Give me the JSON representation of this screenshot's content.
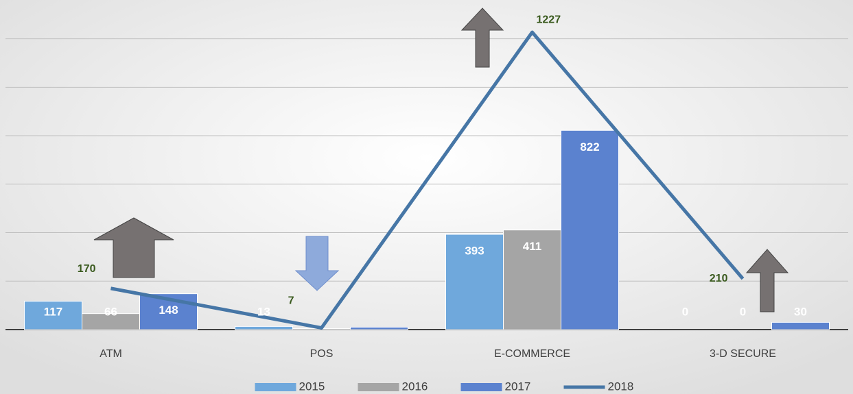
{
  "chart_data": {
    "type": "bar-line",
    "categories": [
      "ATM",
      "POS",
      "E-COMMERCE",
      "3-D SECURE"
    ],
    "series": [
      {
        "name": "2015",
        "type": "bar",
        "color": "#6fa8dc",
        "values": [
          117,
          13,
          393,
          0
        ],
        "value_labels": [
          "117",
          "13",
          "393",
          "0"
        ]
      },
      {
        "name": "2016",
        "type": "bar",
        "color": "#a5a5a5",
        "values": [
          66,
          4,
          411,
          0
        ],
        "value_labels": [
          "66",
          null,
          "411",
          "0"
        ]
      },
      {
        "name": "2017",
        "type": "bar",
        "color": "#5b82cf",
        "values": [
          148,
          10,
          822,
          30
        ],
        "value_labels": [
          "148",
          null,
          "822",
          "30"
        ]
      },
      {
        "name": "2018",
        "type": "line",
        "color": "#4676a6",
        "values": [
          170,
          7,
          1227,
          210
        ],
        "value_labels": [
          "170",
          "7",
          "1227",
          "210"
        ]
      }
    ],
    "ylim": [
      0,
      1360
    ],
    "yticks": [
      0,
      200,
      400,
      600,
      800,
      1000,
      1200
    ],
    "grid": true
  }
}
